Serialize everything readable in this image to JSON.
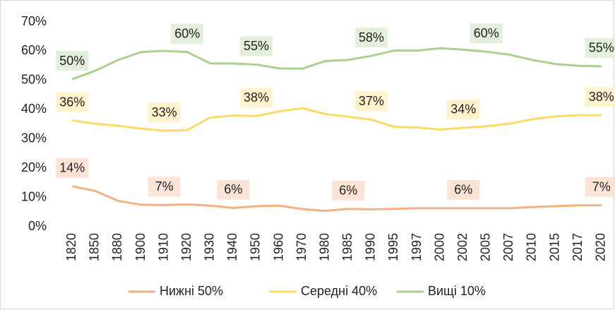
{
  "chart_data": {
    "type": "line",
    "categories": [
      "1820",
      "1850",
      "1880",
      "1900",
      "1910",
      "1920",
      "1930",
      "1940",
      "1950",
      "1960",
      "1970",
      "1980",
      "1985",
      "1990",
      "1995",
      "1997",
      "2000",
      "2002",
      "2005",
      "2007",
      "2010",
      "2015",
      "2017",
      "2020"
    ],
    "series": [
      {
        "name": "Нижні 50%",
        "color": "#f4b183",
        "label_bg": "#fbe3d6",
        "values": [
          13.8,
          12.2,
          8.8,
          7.5,
          7.4,
          7.6,
          7.2,
          6.4,
          7.0,
          7.2,
          6.0,
          5.4,
          6.1,
          5.9,
          6.1,
          6.3,
          6.3,
          6.3,
          6.3,
          6.3,
          6.7,
          7.0,
          7.3,
          7.3
        ],
        "value_labels": [
          "14%",
          null,
          null,
          null,
          "7%",
          null,
          null,
          "6%",
          null,
          null,
          null,
          null,
          "6%",
          null,
          null,
          null,
          null,
          "6%",
          null,
          null,
          null,
          null,
          null,
          "7%"
        ]
      },
      {
        "name": "Середні 40%",
        "color": "#ffd966",
        "label_bg": "#fff2cc",
        "values": [
          36.3,
          35.2,
          34.5,
          33.5,
          32.8,
          33.0,
          37.3,
          38.0,
          37.8,
          39.4,
          40.5,
          38.5,
          37.6,
          36.6,
          34.1,
          33.9,
          33.2,
          33.8,
          34.3,
          35.2,
          36.7,
          37.7,
          38.1,
          38.1
        ],
        "value_labels": [
          "36%",
          null,
          null,
          null,
          "33%",
          null,
          null,
          null,
          "38%",
          null,
          null,
          null,
          null,
          "37%",
          null,
          null,
          null,
          "34%",
          null,
          null,
          null,
          null,
          null,
          "38%"
        ]
      },
      {
        "name": "Вищі 10%",
        "color": "#a9d18e",
        "label_bg": "#e2efda",
        "values": [
          50.4,
          53.3,
          57.0,
          59.7,
          60.1,
          59.7,
          55.8,
          55.8,
          55.4,
          54.1,
          54.0,
          56.6,
          57.0,
          58.4,
          60.2,
          60.2,
          61.0,
          60.5,
          59.8,
          58.8,
          57.0,
          55.6,
          55.0,
          54.8
        ],
        "value_labels": [
          "50%",
          null,
          null,
          null,
          null,
          "60%",
          null,
          null,
          "55%",
          null,
          null,
          null,
          null,
          "58%",
          null,
          null,
          null,
          null,
          "60%",
          null,
          null,
          null,
          null,
          "55%"
        ]
      }
    ],
    "ylim": [
      0,
      70
    ],
    "yticks": [
      {
        "value": 0,
        "label": "0%"
      },
      {
        "value": 10,
        "label": "10%"
      },
      {
        "value": 20,
        "label": "20%"
      },
      {
        "value": 30,
        "label": "30%"
      },
      {
        "value": 40,
        "label": "40%"
      },
      {
        "value": 50,
        "label": "50%"
      },
      {
        "value": 60,
        "label": "60%"
      },
      {
        "value": 70,
        "label": "70%"
      }
    ],
    "grid": false,
    "legend": "bottom"
  }
}
